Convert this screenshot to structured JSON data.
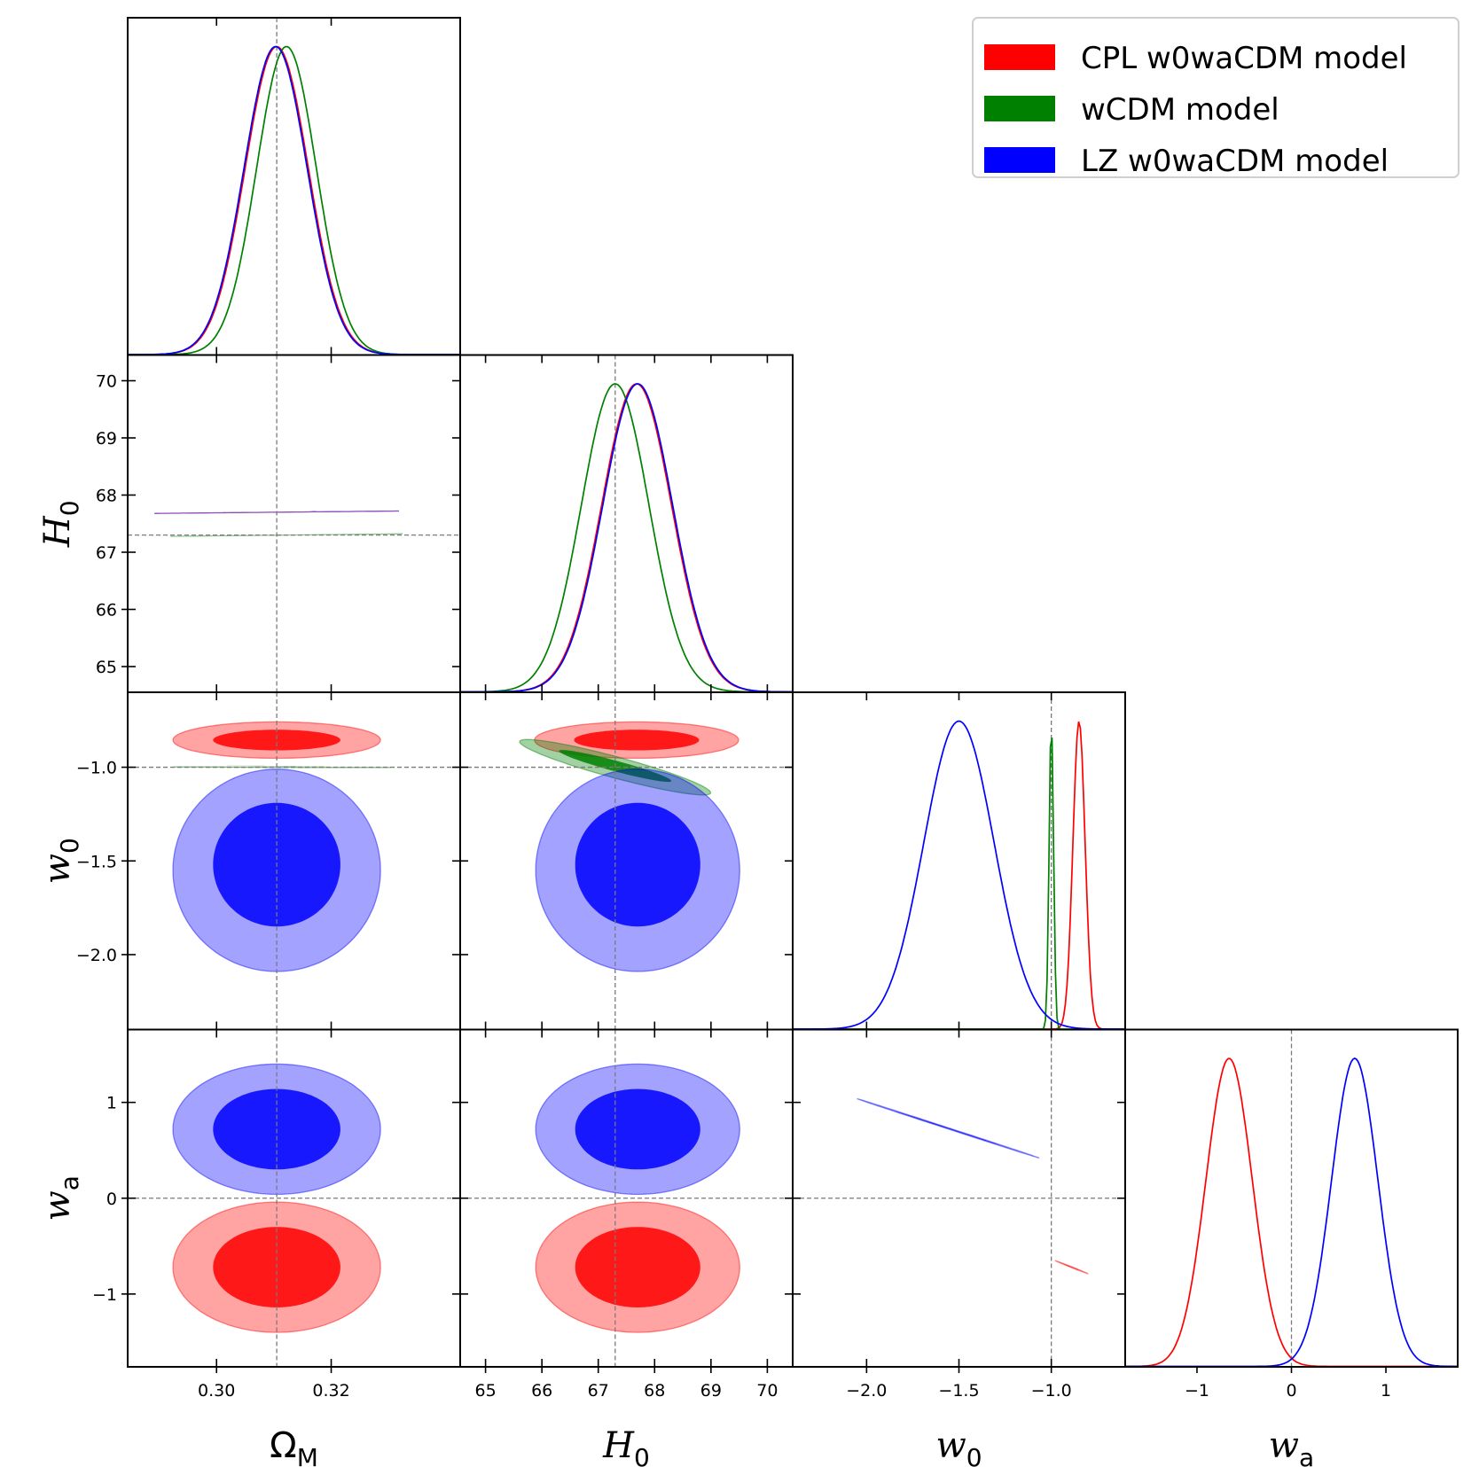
{
  "chart_data": {
    "type": "triangle-corner",
    "parameters": [
      {
        "name": "Ω",
        "subscript": "M",
        "italic": false,
        "lim": [
          0.2845,
          0.3425
        ],
        "ticks": [
          0.3,
          0.32
        ],
        "tick_labels": [
          "0.30",
          "0.32"
        ],
        "fiducial": 0.3105
      },
      {
        "name": "H",
        "subscript": "0",
        "italic": true,
        "lim": [
          64.55,
          70.45
        ],
        "ticks": [
          65,
          66,
          67,
          68,
          69,
          70
        ],
        "tick_labels": [
          "65",
          "66",
          "67",
          "68",
          "69",
          "70"
        ],
        "fiducial": 67.3
      },
      {
        "name": "w",
        "subscript": "0",
        "italic": true,
        "lim": [
          -2.4,
          -0.6
        ],
        "ticks": [
          -2.0,
          -1.5,
          -1.0
        ],
        "tick_labels": [
          "−2.0",
          "−1.5",
          "−1.0"
        ],
        "fiducial": -1.0
      },
      {
        "name": "w",
        "subscript": "a",
        "italic": true,
        "lim": [
          -1.76,
          1.76
        ],
        "ticks": [
          -1,
          0,
          1
        ],
        "tick_labels": [
          "−1",
          "0",
          "1"
        ],
        "fiducial": 0
      }
    ],
    "legend": {
      "position": "top-right",
      "entries": [
        {
          "label": "CPL w0waCDM model",
          "color": "#ff0000"
        },
        {
          "label": "wCDM model",
          "color": "#008000"
        },
        {
          "label": "LZ w0waCDM model",
          "color": "#0000ff"
        }
      ]
    },
    "marginals": [
      {
        "param": 0,
        "series": [
          {
            "color": "#ff0000",
            "mean": 0.3105,
            "sigma": 0.0055
          },
          {
            "color": "#008000",
            "mean": 0.3122,
            "sigma": 0.0052
          },
          {
            "color": "#0000ff",
            "mean": 0.3103,
            "sigma": 0.0055
          }
        ]
      },
      {
        "param": 1,
        "series": [
          {
            "color": "#ff0000",
            "mean": 67.68,
            "sigma": 0.62
          },
          {
            "color": "#008000",
            "mean": 67.3,
            "sigma": 0.6
          },
          {
            "color": "#0000ff",
            "mean": 67.7,
            "sigma": 0.62
          }
        ]
      },
      {
        "param": 2,
        "series": [
          {
            "color": "#ff0000",
            "mean": -0.85,
            "sigma": 0.033
          },
          {
            "color": "#008000",
            "mean": -1.0,
            "sigma": 0.012
          },
          {
            "color": "#0000ff",
            "mean": -1.5,
            "sigma": 0.19
          }
        ]
      },
      {
        "param": 3,
        "series": [
          {
            "color": "#ff0000",
            "mean": -0.66,
            "sigma": 0.245
          },
          {
            "color": "#0000ff",
            "mean": 0.67,
            "sigma": 0.245
          }
        ]
      }
    ],
    "contours": [
      {
        "x": 0,
        "y": 1,
        "items": [
          {
            "color": "#008000",
            "level": 2,
            "cx": 0.3122,
            "cy": 67.3,
            "a": 0.03,
            "b": 0.0018,
            "ang": -0.83
          },
          {
            "color": "#ff0000",
            "level": 2,
            "cx": 0.3105,
            "cy": 67.7,
            "a": 0.03,
            "b": 0.0018,
            "ang": -0.78
          },
          {
            "color": "#0000ff",
            "level": 2,
            "cx": 0.3105,
            "cy": 67.7,
            "a": 0.03,
            "b": 0.0018,
            "ang": -0.78
          },
          {
            "color": "#008000",
            "level": 1,
            "cx": 0.312,
            "cy": 67.35,
            "a": 0.02,
            "b": 0.0012,
            "ang": -0.83
          },
          {
            "color": "#ff0000",
            "level": 1,
            "cx": 0.3105,
            "cy": 67.72,
            "a": 0.02,
            "b": 0.0012,
            "ang": -0.78
          },
          {
            "color": "#0000ff",
            "level": 1,
            "cx": 0.3105,
            "cy": 67.72,
            "a": 0.02,
            "b": 0.0012,
            "ang": -0.78
          }
        ]
      },
      {
        "x": 0,
        "y": 2,
        "items": [
          {
            "color": "#ff0000",
            "level": 2,
            "cx": 0.3105,
            "cy": -0.855,
            "a": 0.0181,
            "b": 0.097,
            "ang": 0
          },
          {
            "color": "#ff0000",
            "level": 1,
            "cx": 0.3105,
            "cy": -0.855,
            "a": 0.0111,
            "b": 0.055,
            "ang": 0
          },
          {
            "color": "#008000",
            "level": 2,
            "cx": 0.3115,
            "cy": -1.0,
            "a": 0.019,
            "b": 0.022,
            "ang": 0.08
          },
          {
            "color": "#008000",
            "level": 1,
            "cx": 0.3115,
            "cy": -0.993,
            "a": 0.011,
            "b": 0.011,
            "ang": 0.08
          },
          {
            "color": "#0000ff",
            "level": 2,
            "cx": 0.3105,
            "cy": -1.55,
            "a": 0.0181,
            "b": 0.54,
            "ang": 0
          },
          {
            "color": "#0000ff",
            "level": 1,
            "cx": 0.3105,
            "cy": -1.52,
            "a": 0.0111,
            "b": 0.33,
            "ang": 0
          }
        ]
      },
      {
        "x": 1,
        "y": 2,
        "items": [
          {
            "color": "#ff0000",
            "level": 2,
            "cx": 67.68,
            "cy": -0.855,
            "a": 1.81,
            "b": 0.097,
            "ang": 0
          },
          {
            "color": "#ff0000",
            "level": 1,
            "cx": 67.68,
            "cy": -0.855,
            "a": 1.11,
            "b": 0.055,
            "ang": 0
          },
          {
            "color": "#008000",
            "level": 2,
            "cx": 67.3,
            "cy": -1.0,
            "a": 1.7,
            "b": 0.018,
            "ang": 0.08
          },
          {
            "color": "#008000",
            "level": 1,
            "cx": 67.3,
            "cy": -0.993,
            "a": 1.0,
            "b": 0.009,
            "ang": 0.08
          },
          {
            "color": "#0000ff",
            "level": 2,
            "cx": 67.7,
            "cy": -1.55,
            "a": 1.81,
            "b": 0.54,
            "ang": 0
          },
          {
            "color": "#0000ff",
            "level": 1,
            "cx": 67.7,
            "cy": -1.52,
            "a": 1.11,
            "b": 0.33,
            "ang": 0
          }
        ]
      },
      {
        "x": 0,
        "y": 3,
        "items": [
          {
            "color": "#0000ff",
            "level": 2,
            "cx": 0.3105,
            "cy": 0.72,
            "a": 0.0181,
            "b": 0.68,
            "ang": 0
          },
          {
            "color": "#0000ff",
            "level": 1,
            "cx": 0.3105,
            "cy": 0.72,
            "a": 0.0111,
            "b": 0.42,
            "ang": 0
          },
          {
            "color": "#ff0000",
            "level": 2,
            "cx": 0.3105,
            "cy": -0.72,
            "a": 0.0181,
            "b": 0.68,
            "ang": 0
          },
          {
            "color": "#ff0000",
            "level": 1,
            "cx": 0.3105,
            "cy": -0.72,
            "a": 0.0111,
            "b": 0.42,
            "ang": 0
          }
        ]
      },
      {
        "x": 1,
        "y": 3,
        "items": [
          {
            "color": "#0000ff",
            "level": 2,
            "cx": 67.7,
            "cy": 0.72,
            "a": 1.81,
            "b": 0.68,
            "ang": 0
          },
          {
            "color": "#0000ff",
            "level": 1,
            "cx": 67.7,
            "cy": 0.72,
            "a": 1.11,
            "b": 0.42,
            "ang": 0
          },
          {
            "color": "#ff0000",
            "level": 2,
            "cx": 67.7,
            "cy": -0.72,
            "a": 1.81,
            "b": 0.68,
            "ang": 0
          },
          {
            "color": "#ff0000",
            "level": 1,
            "cx": 67.7,
            "cy": -0.72,
            "a": 1.11,
            "b": 0.42,
            "ang": 0
          }
        ]
      },
      {
        "x": 2,
        "y": 3,
        "items": [
          {
            "color": "#0000ff",
            "level": 2,
            "cx": -1.56,
            "cy": 0.73,
            "a": 0.58,
            "b": 0.025,
            "ang": 0.56
          },
          {
            "color": "#0000ff",
            "level": 1,
            "cx": -1.56,
            "cy": 0.73,
            "a": 0.33,
            "b": 0.013,
            "ang": 0.56
          },
          {
            "color": "#ff0000",
            "level": 2,
            "cx": -0.89,
            "cy": -0.72,
            "a": 0.11,
            "b": 0.028,
            "ang": 0.65
          },
          {
            "color": "#ff0000",
            "level": 1,
            "cx": -0.89,
            "cy": -0.72,
            "a": 0.062,
            "b": 0.014,
            "ang": 0.65
          }
        ]
      }
    ]
  }
}
